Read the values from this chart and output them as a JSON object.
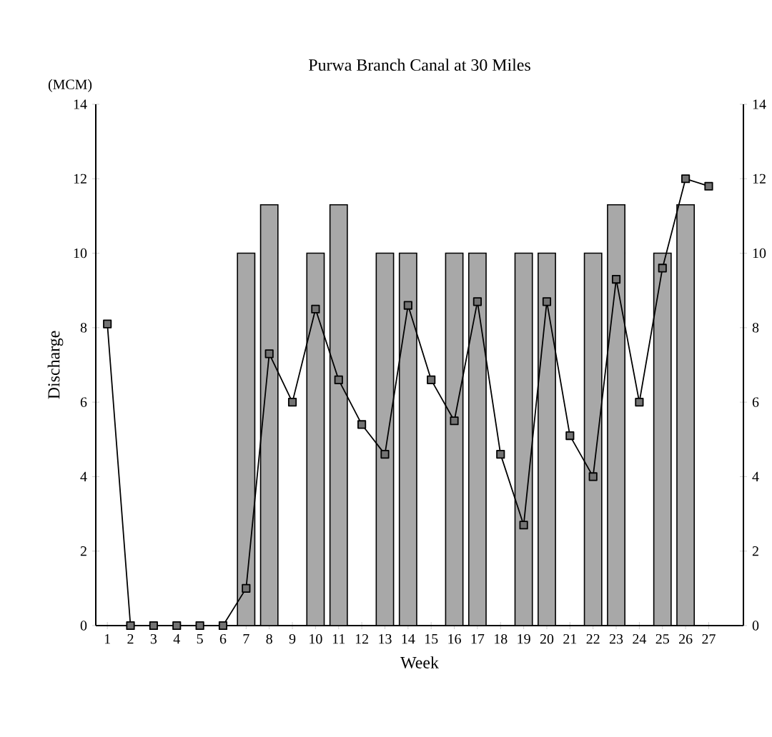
{
  "chart_data": {
    "type": "bar",
    "title": "Purwa Branch Canal at 30 Miles",
    "xlabel": "Week",
    "ylabel": "Discharge",
    "annotations": [
      "(MCM)"
    ],
    "categories": [
      "1",
      "2",
      "3",
      "4",
      "5",
      "6",
      "7",
      "8",
      "9",
      "10",
      "11",
      "12",
      "13",
      "14",
      "15",
      "16",
      "17",
      "18",
      "19",
      "20",
      "21",
      "22",
      "23",
      "24",
      "25",
      "26",
      "27"
    ],
    "series": [
      {
        "color": "#a8a8a8",
        "values": [
          null,
          null,
          null,
          null,
          null,
          null,
          10,
          11.3,
          null,
          10,
          11.3,
          null,
          10,
          10,
          null,
          10,
          10,
          null,
          10,
          10,
          null,
          10,
          11.3,
          null,
          10,
          11.3,
          null
        ]
      },
      {
        "type": "line",
        "color": "#000000",
        "marker": "square",
        "values": [
          8.1,
          0,
          0,
          0,
          0,
          0,
          1.0,
          7.3,
          6.0,
          8.5,
          6.6,
          5.4,
          4.6,
          8.6,
          6.6,
          5.5,
          8.7,
          4.6,
          2.7,
          8.7,
          5.1,
          4.0,
          9.3,
          6.0,
          9.6,
          12.0,
          11.8
        ]
      }
    ],
    "ylim": [
      0,
      14
    ],
    "yticks": [
      0,
      2,
      4,
      6,
      8,
      10,
      12,
      14
    ],
    "y2lim": [
      0,
      14
    ],
    "y2ticks": [
      0,
      2,
      4,
      6,
      8,
      10,
      12,
      14
    ],
    "grid": false
  }
}
